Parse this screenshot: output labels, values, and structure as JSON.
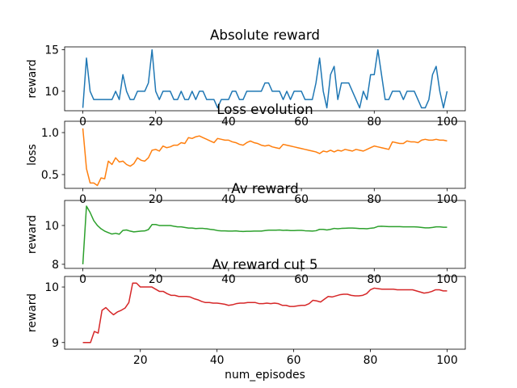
{
  "chart_data": [
    {
      "type": "line",
      "title": "Absolute reward",
      "ylabel": "reward",
      "color": "#1f77b4",
      "x": [
        0,
        1,
        2,
        3,
        4,
        5,
        6,
        7,
        8,
        9,
        10,
        11,
        12,
        13,
        14,
        15,
        16,
        17,
        18,
        19,
        20,
        21,
        22,
        23,
        24,
        25,
        26,
        27,
        28,
        29,
        30,
        31,
        32,
        33,
        34,
        35,
        36,
        37,
        38,
        39,
        40,
        41,
        42,
        43,
        44,
        45,
        46,
        47,
        48,
        49,
        50,
        51,
        52,
        53,
        54,
        55,
        56,
        57,
        58,
        59,
        60,
        61,
        62,
        63,
        64,
        65,
        66,
        67,
        68,
        69,
        70,
        71,
        72,
        73,
        74,
        75,
        76,
        77,
        78,
        79,
        80,
        81,
        82,
        83,
        84,
        85,
        86,
        87,
        88,
        89,
        90,
        91,
        92,
        93,
        94,
        95,
        96,
        97,
        98,
        99,
        100
      ],
      "values": [
        8,
        14,
        10,
        9,
        9,
        9,
        9,
        9,
        9,
        10,
        9,
        12,
        10,
        9,
        9,
        10,
        10,
        10,
        11,
        15,
        10,
        9,
        10,
        10,
        10,
        9,
        9,
        10,
        9,
        9,
        10,
        9,
        10,
        10,
        9,
        9,
        9,
        8,
        9,
        9,
        9,
        10,
        10,
        9,
        9,
        10,
        10,
        10,
        10,
        10,
        11,
        11,
        10,
        10,
        10,
        9,
        10,
        9,
        10,
        10,
        10,
        9,
        9,
        9,
        11,
        14,
        10,
        8,
        12,
        13,
        9,
        11,
        11,
        11,
        10,
        9,
        8,
        10,
        9,
        12,
        12,
        15,
        12,
        9,
        9,
        10,
        10,
        10,
        9,
        10,
        10,
        10,
        9,
        8,
        8,
        9,
        12,
        13,
        10,
        8,
        10
      ],
      "xlim": [
        -5,
        105
      ],
      "xticks": [
        0,
        20,
        40,
        60,
        80,
        100
      ],
      "ylim": [
        7.65,
        15.35
      ],
      "yticks": [
        10,
        15
      ]
    },
    {
      "type": "line",
      "title": "Loss evolution",
      "ylabel": "loss",
      "color": "#ff7f0e",
      "x": [
        0,
        1,
        2,
        3,
        4,
        5,
        6,
        7,
        8,
        9,
        10,
        11,
        12,
        13,
        14,
        15,
        16,
        17,
        18,
        19,
        20,
        21,
        22,
        23,
        24,
        25,
        26,
        27,
        28,
        29,
        30,
        31,
        32,
        33,
        34,
        35,
        36,
        37,
        38,
        39,
        40,
        41,
        42,
        43,
        44,
        45,
        46,
        47,
        48,
        49,
        50,
        51,
        52,
        53,
        54,
        55,
        56,
        57,
        58,
        59,
        60,
        61,
        62,
        63,
        64,
        65,
        66,
        67,
        68,
        69,
        70,
        71,
        72,
        73,
        74,
        75,
        76,
        77,
        78,
        79,
        80,
        81,
        82,
        83,
        84,
        85,
        86,
        87,
        88,
        89,
        90,
        91,
        92,
        93,
        94,
        95,
        96,
        97,
        98,
        99,
        100
      ],
      "values": [
        1.05,
        0.57,
        0.4,
        0.4,
        0.37,
        0.46,
        0.45,
        0.66,
        0.62,
        0.7,
        0.65,
        0.66,
        0.62,
        0.6,
        0.63,
        0.7,
        0.67,
        0.66,
        0.7,
        0.79,
        0.8,
        0.78,
        0.84,
        0.82,
        0.83,
        0.85,
        0.85,
        0.88,
        0.87,
        0.94,
        0.93,
        0.95,
        0.96,
        0.94,
        0.92,
        0.9,
        0.88,
        0.93,
        0.92,
        0.91,
        0.91,
        0.89,
        0.88,
        0.86,
        0.85,
        0.88,
        0.9,
        0.88,
        0.87,
        0.85,
        0.84,
        0.85,
        0.83,
        0.82,
        0.81,
        0.86,
        0.85,
        0.84,
        0.83,
        0.82,
        0.81,
        0.8,
        0.79,
        0.78,
        0.77,
        0.75,
        0.78,
        0.77,
        0.79,
        0.77,
        0.79,
        0.78,
        0.8,
        0.79,
        0.78,
        0.8,
        0.79,
        0.78,
        0.8,
        0.82,
        0.84,
        0.83,
        0.82,
        0.81,
        0.8,
        0.89,
        0.88,
        0.87,
        0.87,
        0.9,
        0.89,
        0.89,
        0.88,
        0.91,
        0.92,
        0.91,
        0.91,
        0.92,
        0.91,
        0.91,
        0.9
      ],
      "xlim": [
        -5,
        105
      ],
      "xticks": [
        0,
        20,
        40,
        60,
        80,
        100
      ],
      "ylim": [
        0.336,
        1.135
      ],
      "yticks": [
        0.5,
        {
          "value": 1,
          "label": "1.0"
        }
      ]
    },
    {
      "type": "line",
      "title": "Av reward",
      "ylabel": "reward",
      "color": "#2ca02c",
      "x": [
        0,
        1,
        2,
        3,
        4,
        5,
        6,
        7,
        8,
        9,
        10,
        11,
        12,
        13,
        14,
        15,
        16,
        17,
        18,
        19,
        20,
        21,
        22,
        23,
        24,
        25,
        26,
        27,
        28,
        29,
        30,
        31,
        32,
        33,
        34,
        35,
        36,
        37,
        38,
        39,
        40,
        41,
        42,
        43,
        44,
        45,
        46,
        47,
        48,
        49,
        50,
        51,
        52,
        53,
        54,
        55,
        56,
        57,
        58,
        59,
        60,
        61,
        62,
        63,
        64,
        65,
        66,
        67,
        68,
        69,
        70,
        71,
        72,
        73,
        74,
        75,
        76,
        77,
        78,
        79,
        80,
        81,
        82,
        83,
        84,
        85,
        86,
        87,
        88,
        89,
        90,
        91,
        92,
        93,
        94,
        95,
        96,
        97,
        98,
        99,
        100
      ],
      "values": [
        8,
        11,
        10.67,
        10.25,
        10,
        9.83,
        9.71,
        9.63,
        9.56,
        9.6,
        9.55,
        9.75,
        9.77,
        9.71,
        9.67,
        9.69,
        9.71,
        9.72,
        9.79,
        10.05,
        10.05,
        10,
        10,
        10,
        10,
        9.96,
        9.93,
        9.93,
        9.9,
        9.87,
        9.87,
        9.84,
        9.85,
        9.85,
        9.83,
        9.8,
        9.78,
        9.74,
        9.72,
        9.72,
        9.71,
        9.71,
        9.72,
        9.7,
        9.69,
        9.7,
        9.7,
        9.71,
        9.71,
        9.71,
        9.74,
        9.76,
        9.76,
        9.76,
        9.77,
        9.75,
        9.76,
        9.74,
        9.74,
        9.75,
        9.75,
        9.73,
        9.72,
        9.71,
        9.73,
        9.8,
        9.8,
        9.77,
        9.8,
        9.85,
        9.83,
        9.85,
        9.86,
        9.87,
        9.87,
        9.86,
        9.84,
        9.84,
        9.83,
        9.86,
        9.88,
        9.95,
        9.96,
        9.95,
        9.94,
        9.94,
        9.94,
        9.94,
        9.93,
        9.93,
        9.93,
        9.93,
        9.92,
        9.9,
        9.88,
        9.88,
        9.9,
        9.93,
        9.93,
        9.91,
        9.91
      ],
      "xlim": [
        -5,
        105
      ],
      "xticks": [
        0,
        20,
        40,
        60,
        80,
        100
      ],
      "ylim": [
        7.79,
        11.29
      ],
      "yticks": [
        8,
        10
      ]
    },
    {
      "type": "line",
      "title": "Av reward cut 5",
      "ylabel": "reward",
      "xlabel": "num_episodes",
      "color": "#d62728",
      "x": [
        5,
        6,
        7,
        8,
        9,
        10,
        11,
        12,
        13,
        14,
        15,
        16,
        17,
        18,
        19,
        20,
        21,
        22,
        23,
        24,
        25,
        26,
        27,
        28,
        29,
        30,
        31,
        32,
        33,
        34,
        35,
        36,
        37,
        38,
        39,
        40,
        41,
        42,
        43,
        44,
        45,
        46,
        47,
        48,
        49,
        50,
        51,
        52,
        53,
        54,
        55,
        56,
        57,
        58,
        59,
        60,
        61,
        62,
        63,
        64,
        65,
        66,
        67,
        68,
        69,
        70,
        71,
        72,
        73,
        74,
        75,
        76,
        77,
        78,
        79,
        80,
        81,
        82,
        83,
        84,
        85,
        86,
        87,
        88,
        89,
        90,
        91,
        92,
        93,
        94,
        95,
        96,
        97,
        98,
        99,
        100
      ],
      "values": [
        9,
        9,
        9,
        9.2,
        9.17,
        9.58,
        9.63,
        9.56,
        9.5,
        9.55,
        9.58,
        9.62,
        9.72,
        10.07,
        10.07,
        10,
        10,
        10,
        10,
        9.96,
        9.92,
        9.92,
        9.88,
        9.85,
        9.85,
        9.83,
        9.83,
        9.83,
        9.82,
        9.79,
        9.77,
        9.74,
        9.72,
        9.72,
        9.71,
        9.71,
        9.7,
        9.69,
        9.67,
        9.68,
        9.7,
        9.71,
        9.71,
        9.72,
        9.72,
        9.72,
        9.7,
        9.7,
        9.71,
        9.7,
        9.71,
        9.7,
        9.67,
        9.67,
        9.65,
        9.65,
        9.66,
        9.67,
        9.67,
        9.7,
        9.76,
        9.75,
        9.73,
        9.78,
        9.83,
        9.82,
        9.84,
        9.86,
        9.87,
        9.87,
        9.85,
        9.84,
        9.84,
        9.85,
        9.88,
        9.95,
        9.98,
        9.97,
        9.96,
        9.96,
        9.96,
        9.96,
        9.95,
        9.95,
        9.95,
        9.95,
        9.95,
        9.93,
        9.91,
        9.89,
        9.9,
        9.92,
        9.95,
        9.95,
        9.93,
        9.93
      ],
      "xlim": [
        0.25,
        104.75
      ],
      "xticks": [
        20,
        40,
        60,
        80,
        100
      ],
      "ylim": [
        8.88,
        10.19
      ],
      "yticks": [
        9,
        10
      ]
    }
  ]
}
